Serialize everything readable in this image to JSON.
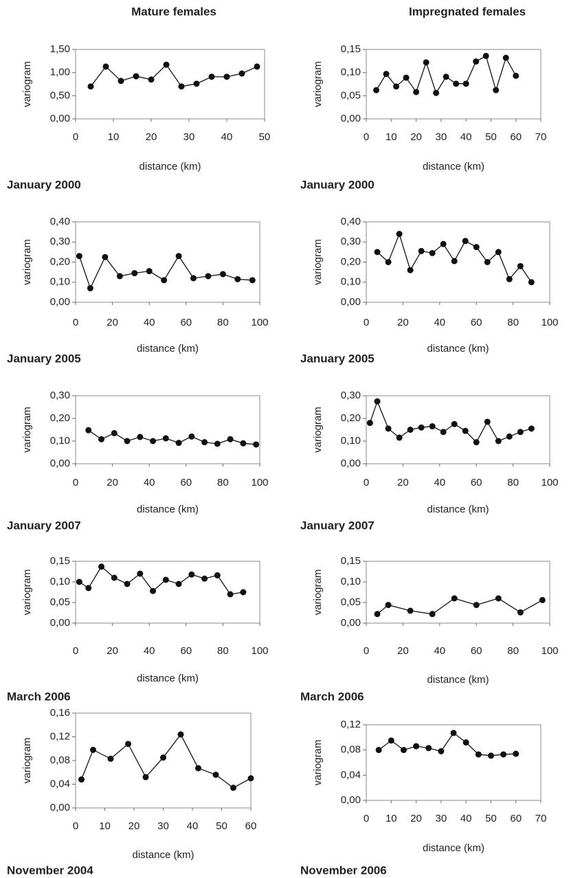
{
  "column_titles": [
    "Mature females",
    "Impregnated females"
  ],
  "chart_data": [
    {
      "type": "line",
      "caption": "January 2000",
      "xlabel": "distance (km)",
      "ylabel": "variogram",
      "color": "#111",
      "x": [
        4,
        8,
        12,
        16,
        20,
        24,
        28,
        32,
        36,
        40,
        44,
        48
      ],
      "values": [
        0.7,
        1.13,
        0.82,
        0.92,
        0.85,
        1.17,
        0.7,
        0.76,
        0.91,
        0.91,
        0.98,
        1.13
      ],
      "xlim": [
        0,
        50
      ],
      "ylim": [
        0,
        1.5
      ],
      "xticks": [
        0,
        10,
        20,
        30,
        40,
        50
      ],
      "yticks": [
        {
          "value": 0,
          "label": "0,00"
        },
        {
          "value": 0.5,
          "label": "0,50"
        },
        {
          "value": 1,
          "label": "1,00"
        },
        {
          "value": 1.5,
          "label": "1,50"
        }
      ]
    },
    {
      "type": "line",
      "caption": "January 2000",
      "xlabel": "distance (km)",
      "ylabel": "variogram",
      "color": "#111",
      "x": [
        4,
        8,
        12,
        16,
        20,
        24,
        28,
        32,
        36,
        40,
        44,
        48,
        52,
        56,
        60
      ],
      "values": [
        0.062,
        0.097,
        0.07,
        0.089,
        0.058,
        0.122,
        0.056,
        0.091,
        0.076,
        0.076,
        0.124,
        0.136,
        0.062,
        0.132,
        0.093
      ],
      "xlim": [
        0,
        70
      ],
      "ylim": [
        0,
        0.15
      ],
      "xticks": [
        0,
        10,
        20,
        30,
        40,
        50,
        60,
        70
      ],
      "yticks": [
        {
          "value": 0,
          "label": "0,00"
        },
        {
          "value": 0.05,
          "label": "0,05"
        },
        {
          "value": 0.1,
          "label": "0,10"
        },
        {
          "value": 0.15,
          "label": "0,15"
        }
      ]
    },
    {
      "type": "line",
      "caption": "January 2005",
      "xlabel": "distance (km)",
      "ylabel": "variogram",
      "color": "#111",
      "x": [
        2,
        8,
        16,
        24,
        32,
        40,
        48,
        56,
        64,
        72,
        80,
        88,
        96
      ],
      "values": [
        0.23,
        0.07,
        0.225,
        0.13,
        0.145,
        0.155,
        0.11,
        0.23,
        0.12,
        0.13,
        0.14,
        0.115,
        0.11
      ],
      "xlim": [
        0,
        100
      ],
      "ylim": [
        0,
        0.4
      ],
      "xticks": [
        0,
        20,
        40,
        60,
        80,
        100
      ],
      "yticks": [
        {
          "value": 0,
          "label": "0,00"
        },
        {
          "value": 0.1,
          "label": "0,10"
        },
        {
          "value": 0.2,
          "label": "0,20"
        },
        {
          "value": 0.3,
          "label": "0,30"
        },
        {
          "value": 0.4,
          "label": "0,40"
        }
      ]
    },
    {
      "type": "line",
      "caption": "January 2005",
      "xlabel": "distance (km)",
      "ylabel": "variogram",
      "color": "#111",
      "x": [
        6,
        12,
        18,
        24,
        30,
        36,
        42,
        48,
        54,
        60,
        66,
        72,
        78,
        84,
        90
      ],
      "values": [
        0.25,
        0.2,
        0.34,
        0.16,
        0.255,
        0.245,
        0.29,
        0.205,
        0.305,
        0.275,
        0.2,
        0.25,
        0.115,
        0.18,
        0.1
      ],
      "xlim": [
        0,
        100
      ],
      "ylim": [
        0,
        0.4
      ],
      "xticks": [
        0,
        20,
        40,
        60,
        80,
        100
      ],
      "yticks": [
        {
          "value": 0,
          "label": "0,00"
        },
        {
          "value": 0.1,
          "label": "0,10"
        },
        {
          "value": 0.2,
          "label": "0,20"
        },
        {
          "value": 0.3,
          "label": "0,30"
        },
        {
          "value": 0.4,
          "label": "0,40"
        }
      ]
    },
    {
      "type": "line",
      "caption": "January 2007",
      "xlabel": "distance (km)",
      "ylabel": "variogram",
      "color": "#111",
      "x": [
        7,
        14,
        21,
        28,
        35,
        42,
        49,
        56,
        63,
        70,
        77,
        84,
        91,
        98
      ],
      "values": [
        0.148,
        0.108,
        0.135,
        0.1,
        0.118,
        0.1,
        0.112,
        0.092,
        0.12,
        0.095,
        0.088,
        0.108,
        0.09,
        0.085
      ],
      "xlim": [
        0,
        100
      ],
      "ylim": [
        0,
        0.3
      ],
      "xticks": [
        0,
        20,
        40,
        60,
        80,
        100
      ],
      "yticks": [
        {
          "value": 0,
          "label": "0,00"
        },
        {
          "value": 0.1,
          "label": "0,10"
        },
        {
          "value": 0.2,
          "label": "0,20"
        },
        {
          "value": 0.3,
          "label": "0,30"
        }
      ]
    },
    {
      "type": "line",
      "caption": "January 2007",
      "xlabel": "distance (km)",
      "ylabel": "variogram",
      "color": "#111",
      "x": [
        2,
        6,
        12,
        18,
        24,
        30,
        36,
        42,
        48,
        54,
        60,
        66,
        72,
        78,
        84,
        90
      ],
      "values": [
        0.18,
        0.275,
        0.155,
        0.115,
        0.15,
        0.16,
        0.165,
        0.14,
        0.175,
        0.145,
        0.095,
        0.185,
        0.1,
        0.12,
        0.14,
        0.155
      ],
      "xlim": [
        0,
        100
      ],
      "ylim": [
        0,
        0.3
      ],
      "xticks": [
        0,
        20,
        40,
        60,
        80,
        100
      ],
      "yticks": [
        {
          "value": 0,
          "label": "0,00"
        },
        {
          "value": 0.1,
          "label": "0,10"
        },
        {
          "value": 0.2,
          "label": "0,20"
        },
        {
          "value": 0.3,
          "label": "0,30"
        }
      ]
    },
    {
      "type": "line",
      "caption": "March 2006",
      "xlabel": "distance (km)",
      "ylabel": "variogram",
      "color": "#111",
      "x": [
        2,
        7,
        14,
        21,
        28,
        35,
        42,
        49,
        56,
        63,
        70,
        77,
        84,
        91
      ],
      "values": [
        0.1,
        0.085,
        0.137,
        0.11,
        0.095,
        0.12,
        0.078,
        0.105,
        0.095,
        0.118,
        0.108,
        0.116,
        0.07,
        0.075
      ],
      "xlim": [
        0,
        100
      ],
      "ylim": [
        0,
        0.15
      ],
      "xticks": [
        0,
        20,
        40,
        60,
        80,
        100
      ],
      "yticks": [
        {
          "value": 0,
          "label": "0,00"
        },
        {
          "value": 0.05,
          "label": "0,05"
        },
        {
          "value": 0.1,
          "label": "0,10"
        },
        {
          "value": 0.15,
          "label": "0,15"
        }
      ]
    },
    {
      "type": "line",
      "caption": "March 2006",
      "xlabel": "distance (km)",
      "ylabel": "variogram",
      "color": "#111",
      "x": [
        6,
        12,
        24,
        36,
        48,
        60,
        72,
        84,
        96
      ],
      "values": [
        0.022,
        0.044,
        0.03,
        0.022,
        0.06,
        0.044,
        0.06,
        0.026,
        0.056
      ],
      "xlim": [
        0,
        100
      ],
      "ylim": [
        0,
        0.15
      ],
      "xticks": [
        0,
        20,
        40,
        60,
        80,
        100
      ],
      "yticks": [
        {
          "value": 0,
          "label": "0,00"
        },
        {
          "value": 0.05,
          "label": "0,05"
        },
        {
          "value": 0.1,
          "label": "0,10"
        },
        {
          "value": 0.15,
          "label": "0,15"
        }
      ]
    },
    {
      "type": "line",
      "caption": "November 2004",
      "xlabel": "distance (km)",
      "ylabel": "variogram",
      "color": "#111",
      "x": [
        2,
        6,
        12,
        18,
        24,
        30,
        36,
        42,
        48,
        54,
        60
      ],
      "values": [
        0.048,
        0.098,
        0.083,
        0.108,
        0.052,
        0.085,
        0.124,
        0.067,
        0.056,
        0.034,
        0.05
      ],
      "xlim": [
        0,
        60
      ],
      "ylim": [
        0,
        0.16
      ],
      "xticks": [
        0,
        10,
        20,
        30,
        40,
        50,
        60
      ],
      "yticks": [
        {
          "value": 0,
          "label": "0,00"
        },
        {
          "value": 0.04,
          "label": "0,04"
        },
        {
          "value": 0.08,
          "label": "0,08"
        },
        {
          "value": 0.12,
          "label": "0,12"
        },
        {
          "value": 0.16,
          "label": "0,16"
        }
      ]
    },
    {
      "type": "line",
      "caption": "November 2006",
      "xlabel": "distance (km)",
      "ylabel": "variogram",
      "color": "#111",
      "x": [
        5,
        10,
        15,
        20,
        25,
        30,
        35,
        40,
        45,
        50,
        55,
        60
      ],
      "values": [
        0.08,
        0.095,
        0.08,
        0.086,
        0.083,
        0.078,
        0.107,
        0.092,
        0.073,
        0.071,
        0.073,
        0.074
      ],
      "xlim": [
        0,
        70
      ],
      "ylim": [
        0,
        0.12
      ],
      "xticks": [
        0,
        10,
        20,
        30,
        40,
        50,
        60,
        70
      ],
      "yticks": [
        {
          "value": 0,
          "label": "0,00"
        },
        {
          "value": 0.04,
          "label": "0,04"
        },
        {
          "value": 0.08,
          "label": "0,08"
        },
        {
          "value": 0.12,
          "label": "0,12"
        }
      ]
    }
  ]
}
